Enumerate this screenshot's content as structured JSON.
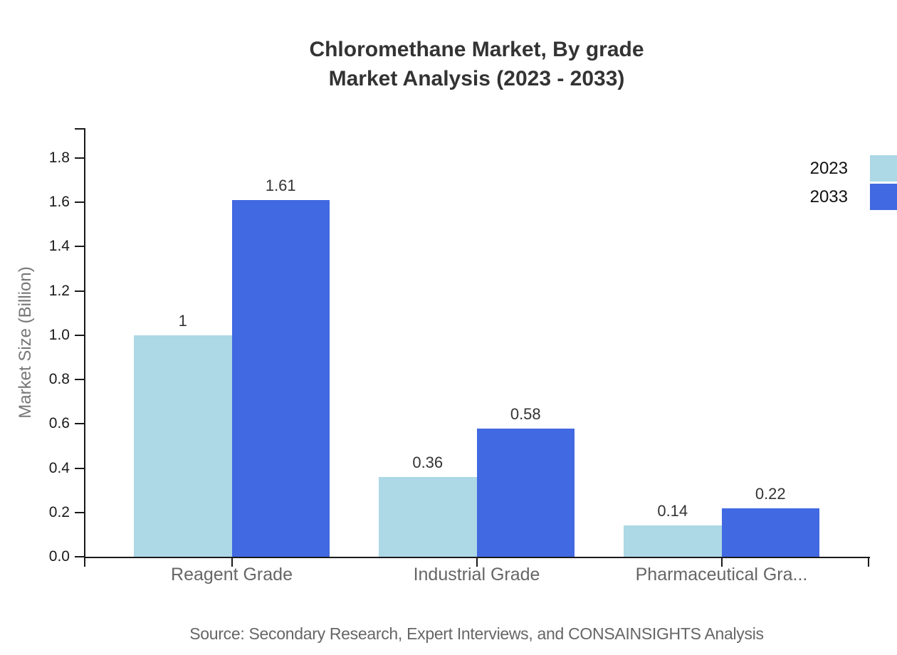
{
  "chart_data": {
    "type": "bar",
    "title": "Chloromethane Market, By grade",
    "subtitle": "Market Analysis (2023 - 2033)",
    "ylabel": "Market Size (Billion)",
    "categories": [
      "Reagent Grade",
      "Industrial Grade",
      "Pharmaceutical Gra..."
    ],
    "series": [
      {
        "name": "2023",
        "color": "#ADD8E6",
        "values": [
          1,
          0.36,
          0.14
        ],
        "value_labels": [
          "1",
          "0.36",
          "0.14"
        ]
      },
      {
        "name": "2033",
        "color": "#4169E1",
        "values": [
          1.61,
          0.58,
          0.22
        ],
        "value_labels": [
          "1.61",
          "0.58",
          "0.22"
        ]
      }
    ],
    "ytick_labels": [
      "0.0",
      "0.2",
      "0.4",
      "0.6",
      "0.8",
      "1.0",
      "1.2",
      "1.4",
      "1.6",
      "1.8"
    ],
    "ylim": [
      0,
      1.93
    ],
    "grid": false,
    "legend_position": "right-top-outside",
    "axis_color": "#1a1a1a",
    "source": "Source: Secondary Research, Expert Interviews, and CONSAINSIGHTS Analysis"
  }
}
